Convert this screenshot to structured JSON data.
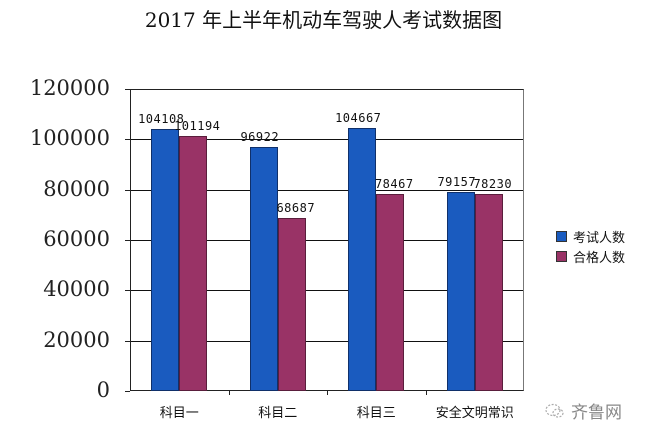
{
  "title": "2017 年上半年机动车驾驶人考试数据图",
  "colors": {
    "series1": "#1a5bbf",
    "series2": "#993366"
  },
  "legend": {
    "items": [
      {
        "label": "考试人数"
      },
      {
        "label": "合格人数"
      }
    ]
  },
  "y_ticks": [
    "120000",
    "100000",
    "80000",
    "60000",
    "40000",
    "20000",
    "0"
  ],
  "x_labels": [
    "科目一",
    "科目二",
    "科目三",
    "安全文明常识"
  ],
  "bar_labels": {
    "s1": [
      "104108",
      "96922",
      "104667",
      "79157"
    ],
    "s2": [
      "101194",
      "68687",
      "78467",
      "78230"
    ]
  },
  "watermark": {
    "text": "齐鲁网"
  },
  "chart_data": {
    "type": "bar",
    "title": "2017 年上半年机动车驾驶人考试数据图",
    "categories": [
      "科目一",
      "科目二",
      "科目三",
      "安全文明常识"
    ],
    "series": [
      {
        "name": "考试人数",
        "color": "#1a5bbf",
        "values": [
          104108,
          96922,
          104667,
          79157
        ]
      },
      {
        "name": "合格人数",
        "color": "#993366",
        "values": [
          101194,
          68687,
          78467,
          78230
        ]
      }
    ],
    "xlabel": "",
    "ylabel": "",
    "ylim": [
      0,
      120000
    ],
    "y_ticks": [
      0,
      20000,
      40000,
      60000,
      80000,
      100000,
      120000
    ],
    "grid": true,
    "legend_position": "right",
    "data_labels": true
  }
}
